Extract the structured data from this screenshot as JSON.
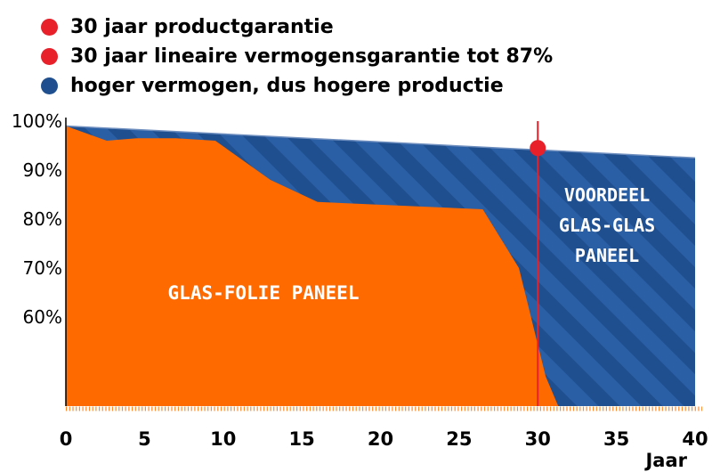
{
  "legend": [
    {
      "label": "30 jaar productgarantie",
      "color": "#e8202a"
    },
    {
      "label": "30 jaar lineaire vermogensgarantie tot 87%",
      "color": "#e8202a"
    },
    {
      "label": "hoger vermogen, dus hogere productie",
      "color": "#1f4f8f"
    }
  ],
  "chart_data": {
    "type": "area",
    "xlabel": "Jaar",
    "ylabel": "",
    "xlim": [
      0,
      40
    ],
    "ylim": [
      0,
      100
    ],
    "x_ticks": [
      "0",
      "5",
      "10",
      "15",
      "20",
      "25",
      "30",
      "35",
      "40"
    ],
    "y_ticks": [
      "100%",
      "90%",
      "80%",
      "70%",
      "60%"
    ],
    "series": [
      {
        "name": "VOORDEEL GLAS-GLAS PANEEL",
        "color": "#1f4f8f",
        "x": [
          0,
          40
        ],
        "y": [
          99,
          92.5
        ]
      },
      {
        "name": "GLAS-FOLIE PANEEL",
        "color": "#ff6a00",
        "x": [
          0,
          2.6,
          4.5,
          7,
          9.5,
          13,
          16,
          26.5,
          28.8,
          29.8,
          30.5,
          31.3
        ],
        "y": [
          99,
          96,
          96.5,
          96.5,
          96,
          88,
          83.5,
          82,
          70,
          50,
          20,
          0
        ]
      }
    ],
    "marker_line": {
      "x": 30,
      "color": "#e8202a"
    },
    "marker_point": {
      "x": 30,
      "y": 94.5,
      "color": "#e8202a"
    },
    "region_labels": {
      "orange": "GLAS-FOLIE PANEEL",
      "blue": [
        "VOORDEEL",
        "GLAS-GLAS",
        "PANEEL"
      ]
    }
  }
}
